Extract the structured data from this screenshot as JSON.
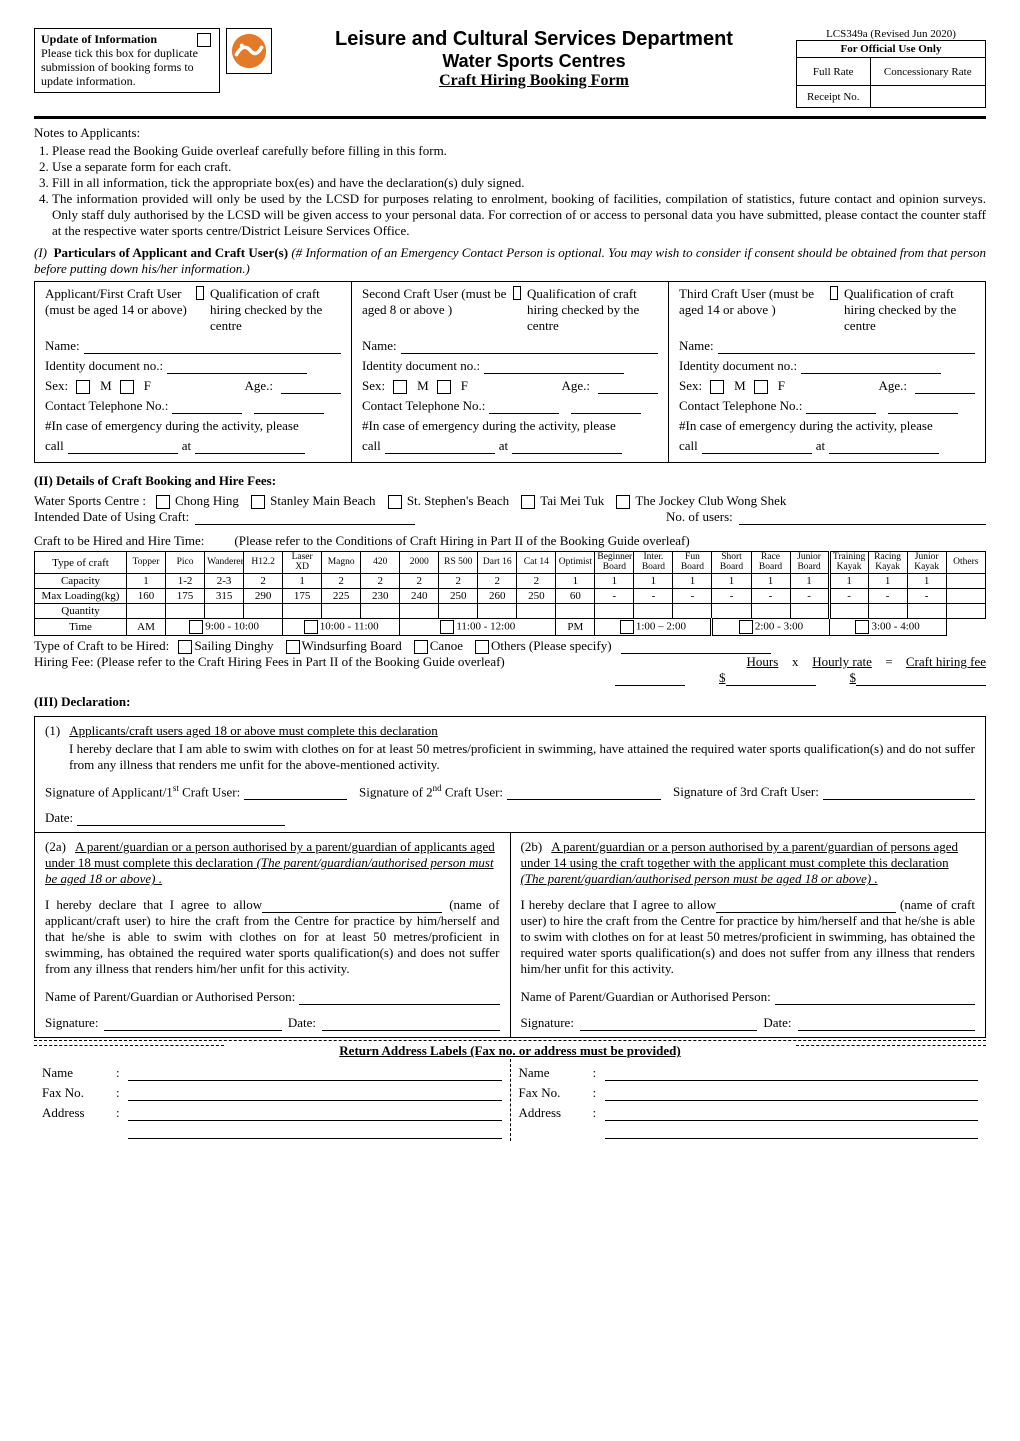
{
  "doc_no": "LCS349a (Revised Jun 2020)",
  "update": {
    "title": "Update of Information",
    "body": "Please tick this box for duplicate submission of booking forms to update information."
  },
  "title": {
    "l1": "Leisure and Cultural Services Department",
    "l2": "Water Sports Centres",
    "l3": "Craft Hiring Booking Form"
  },
  "official": {
    "header": "For Official Use Only",
    "full_rate": "Full Rate",
    "conc_rate": "Concessionary Rate",
    "receipt": "Receipt No."
  },
  "notes": {
    "title": "Notes to Applicants:",
    "items": [
      "Please read the Booking Guide overleaf carefully before filling in this form.",
      "Use a separate form for each craft.",
      "Fill in all information, tick the appropriate box(es) and have the declaration(s) duly signed.",
      "The information provided will only be used by the LCSD for purposes relating to enrolment, booking of facilities, compilation of statistics, future contact and opinion surveys.   Only staff duly authorised by the LCSD will be given access to your personal data.   For correction of or access to personal data you have submitted, please contact the counter staff at the respective water sports centre/District Leisure Services Office."
    ]
  },
  "sec1": {
    "label_num": "(I)",
    "label_bold": "Particulars of Applicant and Craft User(s)",
    "label_rest": "(# Information of an Emergency Contact Person is optional.   You may wish to consider if consent should be obtained from that person before putting down his/her information.)",
    "cols": [
      {
        "who": "Applicant/First Craft User (must be aged 14 or above)",
        "qual": "Qualification of craft hiring checked by the centre"
      },
      {
        "who": "Second Craft User (must be aged 8 or above )",
        "qual": "Qualification of craft hiring checked by the centre"
      },
      {
        "who": "Third Craft User (must be aged 14 or above )",
        "qual": "Qualification of craft hiring checked by the centre"
      }
    ],
    "fields": {
      "name": "Name:",
      "id": "Identity document no.:",
      "sex": "Sex:",
      "m": "M",
      "f": "F",
      "age": "Age.:",
      "tel": "Contact Telephone No.:",
      "emergency": "#In case of emergency during the activity, please",
      "call": "call",
      "at": "at"
    }
  },
  "sec2": {
    "title": "(II)   Details of Craft Booking and Hire Fees:",
    "centre_lbl": "Water Sports Centre :",
    "centres": [
      "Chong Hing",
      "Stanley Main Beach",
      "St. Stephen's Beach",
      "Tai Mei Tuk",
      "The Jockey Club Wong Shek"
    ],
    "intended": "Intended Date of Using Craft:",
    "no_users": "No. of users:",
    "hire_time_lbl": "Craft to be Hired and Hire Time:",
    "hire_time_note": "(Please refer to the Conditions of Craft Hiring in Part II of the Booking Guide overleaf)",
    "table": {
      "type_hdr": "Type of craft",
      "cols": [
        "Topper",
        "Pico",
        "Wanderer",
        "H12.2",
        "Laser XD",
        "Magno",
        "420",
        "2000",
        "RS 500",
        "Dart 16",
        "Cat 14",
        "Optimist",
        "Beginner Board",
        "Inter. Board",
        "Fun Board",
        "Short Board",
        "Race Board",
        "Junior Board",
        "Training Kayak",
        "Racing Kayak",
        "Junior Kayak",
        "Others"
      ],
      "capacity_lbl": "Capacity",
      "capacity": [
        "1",
        "1-2",
        "2-3",
        "2",
        "1",
        "2",
        "2",
        "2",
        "2",
        "2",
        "2",
        "1",
        "1",
        "1",
        "1",
        "1",
        "1",
        "1",
        "1",
        "1",
        "1",
        ""
      ],
      "maxload_lbl": "Max Loading(kg)",
      "maxload": [
        "160",
        "175",
        "315",
        "290",
        "175",
        "225",
        "230",
        "240",
        "250",
        "260",
        "250",
        "60",
        "-",
        "-",
        "-",
        "-",
        "-",
        "-",
        "-",
        "-",
        "-",
        ""
      ],
      "qty_lbl": "Quantity",
      "time_lbl": "Time",
      "am": "AM",
      "pm": "PM",
      "am_slots": [
        "9:00 - 10:00",
        "10:00 - 11:00",
        "11:00 - 12:00"
      ],
      "pm_slots": [
        "1:00 – 2:00",
        "2:00 - 3:00",
        "3:00 - 4:00"
      ]
    },
    "type_line": {
      "lbl": "Type of Craft to be Hired:",
      "opts": [
        "Sailing Dinghy",
        "Windsurfing Board",
        "Canoe",
        "Others (Please specify)"
      ]
    },
    "fee_line": "Hiring Fee: (Please refer to the Craft Hiring Fees in Part II of the Booking Guide overleaf)",
    "hours": "Hours",
    "x": "x",
    "hourly": "Hourly rate",
    "eq": "=",
    "craft_fee": "Craft hiring fee"
  },
  "sec3": {
    "title": "(III)    Declaration:",
    "d1_num": "(1)",
    "d1_hdr": "Applicants/craft users aged 18 or above must complete this declaration",
    "d1_body": "I hereby declare that I am able to swim with clothes on for at least 50 metres/proficient in swimming, have attained the required water sports qualification(s) and do not suffer from any illness that renders me unfit for the above-mentioned activity.",
    "sig1": "Signature of Applicant/1",
    "sig1_suf": " Craft User:",
    "sig2": "Signature of 2",
    "sig2_suf": " Craft User:",
    "sig3": "Signature of 3rd Craft User:",
    "date": "Date:",
    "d2a_num": "(2a)",
    "d2a_hdr": "A parent/guardian or a person authorised by a parent/guardian of applicants aged under 18 must complete this declaration ",
    "d2a_ital": "(The parent/guardian/authorised person must be aged 18 or above) .",
    "d2b_num": "(2b)",
    "d2b_hdr": "A parent/guardian or a person authorised by a parent/guardian of persons aged under 14 using the craft together with the applicant must complete this declaration ",
    "d2b_ital": "(The parent/guardian/authorised person must be aged 18 or above) .",
    "allow": "I hereby declare that I agree to allow",
    "name_suffix_a": "(name of applicant/craft user) to hire the craft from the Centre for practice by him/herself and that he/she is able to swim with clothes on for at least 50 metres/proficient in swimming, has obtained the required water sports qualification(s) and does not suffer from any illness that renders him/her unfit for this activity.",
    "name_suffix_b": "(name of craft user) to hire the craft from the Centre for practice by him/herself and that he/she is able to swim with clothes on for at least 50 metres/proficient in swimming, has obtained the required water sports qualification(s) and does not suffer from any illness that renders him/her unfit for this activity.",
    "np": "Name of Parent/Guardian or Authorised Person:",
    "sig": "Signature:",
    "dt": "Date:"
  },
  "return": {
    "title": "Return Address Labels (Fax no. or address must be provided)",
    "name": "Name",
    "fax": "Fax No.",
    "addr": "Address"
  },
  "colors": {
    "logo_bg": "#e37a2a",
    "logo_fg": "#ffffff"
  }
}
